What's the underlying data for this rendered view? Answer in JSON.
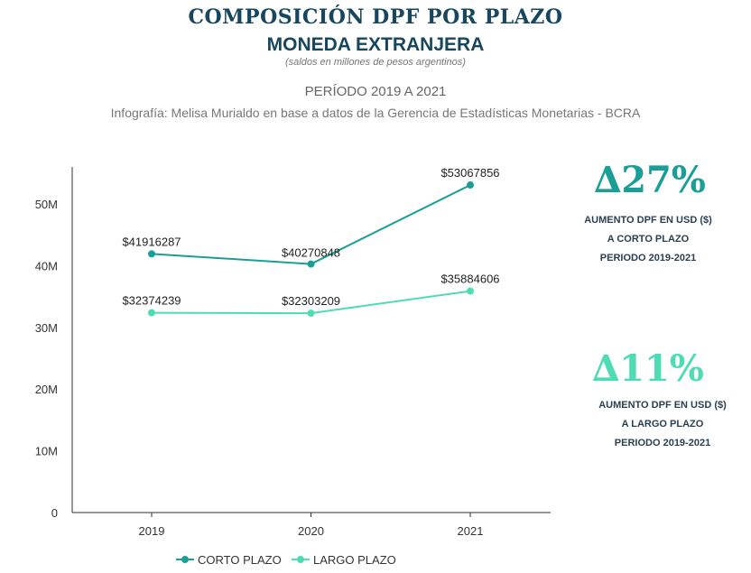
{
  "header": {
    "title": "COMPOSICIÓN DPF POR PLAZO",
    "subtitle": "MONEDA EXTRANJERA",
    "note": "(saldos en millones de pesos argentinos)",
    "period": "PERÍODO 2019 A 2021",
    "credit": "Infografía: Melisa Murialdo en base a datos de la Gerencia de Estadísticas Monetarias - BCRA"
  },
  "callouts": [
    {
      "delta": "∆27%",
      "line1": "AUMENTO DPF EN USD ($)",
      "line2": "A CORTO PLAZO",
      "line3": "PERIODO 2019-2021",
      "color": "#1a9e96"
    },
    {
      "delta": "∆11%",
      "line1": "AUMENTO DPF EN USD ($)",
      "line2": "A LARGO PLAZO",
      "line3": "PERIODO 2019-2021",
      "color": "#4fdcb5"
    }
  ],
  "chart_data": {
    "type": "line",
    "x": [
      "2019",
      "2020",
      "2021"
    ],
    "yticks": [
      "0",
      "10M",
      "20M",
      "30M",
      "40M",
      "50M"
    ],
    "ytick_values": [
      0,
      10000000,
      20000000,
      30000000,
      40000000,
      50000000
    ],
    "ylim": [
      0,
      56000000
    ],
    "series": [
      {
        "name": "CORTO PLAZO",
        "color": "#1a9e96",
        "values": [
          41916287,
          40270848,
          53067856
        ],
        "labels": [
          "$41916287",
          "$40270848",
          "$53067856"
        ]
      },
      {
        "name": "LARGO PLAZO",
        "color": "#4fdcb5",
        "values": [
          32374239,
          32303209,
          35884606
        ],
        "labels": [
          "$32374239",
          "$32303209",
          "$35884606"
        ]
      }
    ],
    "legend": "bottom"
  }
}
